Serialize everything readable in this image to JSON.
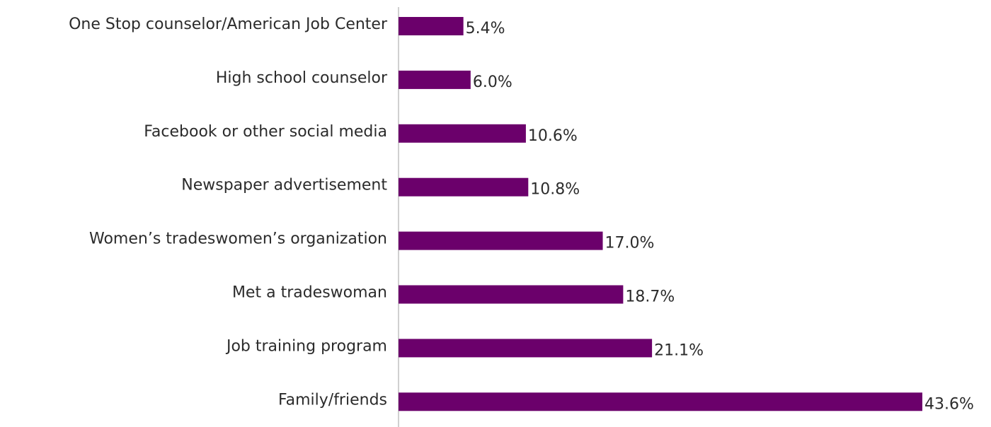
{
  "chart_data": {
    "type": "bar",
    "orientation": "horizontal",
    "categories": [
      "One Stop counselor/American Job Center",
      "High school counselor",
      "Facebook or other social media",
      "Newspaper advertisement",
      "Women’s tradeswomen’s organization",
      "Met a tradeswoman",
      "Job training program",
      "Family/friends"
    ],
    "values": [
      5.4,
      6.0,
      10.6,
      10.8,
      17.0,
      18.7,
      21.1,
      43.6
    ],
    "value_labels": [
      "5.4%",
      "6.0%",
      "10.6%",
      "10.8%",
      "17.0%",
      "18.7%",
      "21.1%",
      "43.6%"
    ],
    "color": "#6b006b"
  }
}
